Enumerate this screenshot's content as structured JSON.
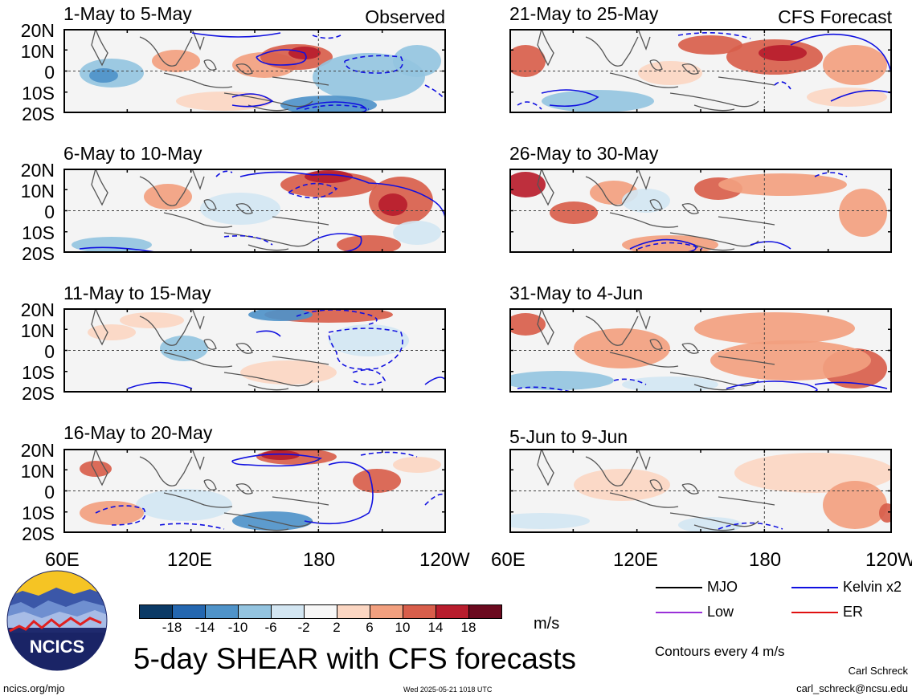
{
  "panels": [
    {
      "title": "1-May to 5-May",
      "tag": "Observed"
    },
    {
      "title": "6-May to 10-May",
      "tag": ""
    },
    {
      "title": "11-May to 15-May",
      "tag": ""
    },
    {
      "title": "16-May to 20-May",
      "tag": ""
    },
    {
      "title": "21-May to 25-May",
      "tag": "CFS Forecast"
    },
    {
      "title": "26-May to 30-May",
      "tag": ""
    },
    {
      "title": "31-May to 4-Jun",
      "tag": ""
    },
    {
      "title": "5-Jun to 9-Jun",
      "tag": ""
    }
  ],
  "lat_labels": [
    "20N",
    "10N",
    "0",
    "10S",
    "20S"
  ],
  "lon_labels": [
    "60E",
    "120E",
    "180",
    "120W"
  ],
  "colorbar": {
    "tick_labels": [
      "-18",
      "-14",
      "-10",
      "-6",
      "-2",
      "2",
      "6",
      "10",
      "14",
      "18"
    ],
    "colors": [
      "#0b3a66",
      "#2467b0",
      "#4f93c9",
      "#94c4e0",
      "#d3e6f2",
      "#f7f7f7",
      "#fbd6c2",
      "#f2a07f",
      "#d85e4b",
      "#b81d2d",
      "#6b0a1f"
    ],
    "units": "m/s"
  },
  "legend": {
    "items": [
      {
        "label": "MJO",
        "color": "#000000"
      },
      {
        "label": "Kelvin x2",
        "color": "#1010e0"
      },
      {
        "label": "Low",
        "color": "#9a30d8"
      },
      {
        "label": "ER",
        "color": "#e01010"
      }
    ],
    "contour_note": "Contours every 4 m/s"
  },
  "main_title": "5-day SHEAR with CFS forecasts",
  "footer": {
    "site": "ncics.org/mjo",
    "timestamp": "Wed 2025-05-21 1018 UTC",
    "author": "Carl Schreck",
    "email": "carl_schreck@ncsu.edu"
  },
  "logo": {
    "text": "NCICS"
  }
}
